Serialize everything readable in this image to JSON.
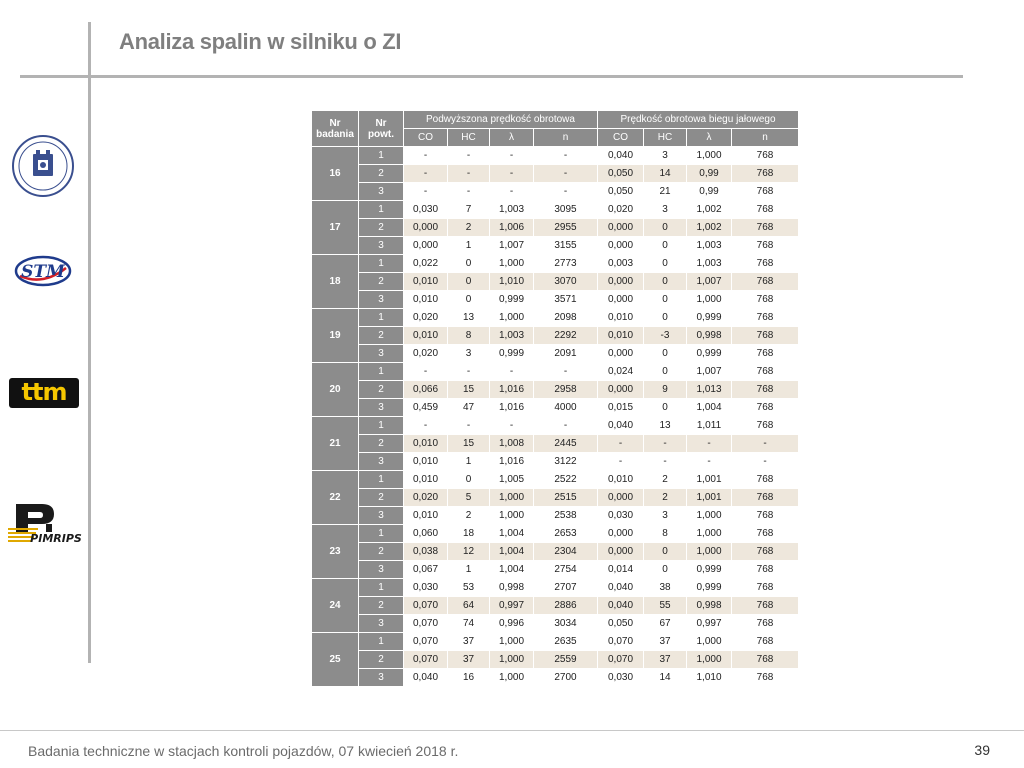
{
  "title": "Analiza spalin w silniku o ZI",
  "footer": "Badania techniczne w stacjach kontroli pojazdów, 07 kwiecień 2018 r.",
  "page_number": "39",
  "logos": {
    "ttm_text": "ttm",
    "stm_text": "STM",
    "pimrips_text": "PIMRIPS"
  },
  "table": {
    "col_nr_badania": [
      "Nr",
      "badania"
    ],
    "col_nr_powt": [
      "Nr",
      "powt."
    ],
    "group1": "Podwyższona prędkość obrotowa",
    "group2": "Prędkość obrotowa biegu jałowego",
    "subcols": [
      "CO",
      "HC",
      "λ",
      "n",
      "CO",
      "HC",
      "λ",
      "n"
    ],
    "tests": [
      {
        "nr": "16",
        "rows": [
          [
            "1",
            "-",
            "-",
            "-",
            "-",
            "0,040",
            "3",
            "1,000",
            "768"
          ],
          [
            "2",
            "-",
            "-",
            "-",
            "-",
            "0,050",
            "14",
            "0,99",
            "768"
          ],
          [
            "3",
            "-",
            "-",
            "-",
            "-",
            "0,050",
            "21",
            "0,99",
            "768"
          ]
        ]
      },
      {
        "nr": "17",
        "rows": [
          [
            "1",
            "0,030",
            "7",
            "1,003",
            "3095",
            "0,020",
            "3",
            "1,002",
            "768"
          ],
          [
            "2",
            "0,000",
            "2",
            "1,006",
            "2955",
            "0,000",
            "0",
            "1,002",
            "768"
          ],
          [
            "3",
            "0,000",
            "1",
            "1,007",
            "3155",
            "0,000",
            "0",
            "1,003",
            "768"
          ]
        ]
      },
      {
        "nr": "18",
        "rows": [
          [
            "1",
            "0,022",
            "0",
            "1,000",
            "2773",
            "0,003",
            "0",
            "1,003",
            "768"
          ],
          [
            "2",
            "0,010",
            "0",
            "1,010",
            "3070",
            "0,000",
            "0",
            "1,007",
            "768"
          ],
          [
            "3",
            "0,010",
            "0",
            "0,999",
            "3571",
            "0,000",
            "0",
            "1,000",
            "768"
          ]
        ]
      },
      {
        "nr": "19",
        "rows": [
          [
            "1",
            "0,020",
            "13",
            "1,000",
            "2098",
            "0,010",
            "0",
            "0,999",
            "768"
          ],
          [
            "2",
            "0,010",
            "8",
            "1,003",
            "2292",
            "0,010",
            "-3",
            "0,998",
            "768"
          ],
          [
            "3",
            "0,020",
            "3",
            "0,999",
            "2091",
            "0,000",
            "0",
            "0,999",
            "768"
          ]
        ]
      },
      {
        "nr": "20",
        "rows": [
          [
            "1",
            "-",
            "-",
            "-",
            "-",
            "0,024",
            "0",
            "1,007",
            "768"
          ],
          [
            "2",
            "0,066",
            "15",
            "1,016",
            "2958",
            "0,000",
            "9",
            "1,013",
            "768"
          ],
          [
            "3",
            "0,459",
            "47",
            "1,016",
            "4000",
            "0,015",
            "0",
            "1,004",
            "768"
          ]
        ]
      },
      {
        "nr": "21",
        "rows": [
          [
            "1",
            "-",
            "-",
            "-",
            "-",
            "0,040",
            "13",
            "1,011",
            "768"
          ],
          [
            "2",
            "0,010",
            "15",
            "1,008",
            "2445",
            "-",
            "-",
            "-",
            "-"
          ],
          [
            "3",
            "0,010",
            "1",
            "1,016",
            "3122",
            "-",
            "-",
            "-",
            "-"
          ]
        ]
      },
      {
        "nr": "22",
        "rows": [
          [
            "1",
            "0,010",
            "0",
            "1,005",
            "2522",
            "0,010",
            "2",
            "1,001",
            "768"
          ],
          [
            "2",
            "0,020",
            "5",
            "1,000",
            "2515",
            "0,000",
            "2",
            "1,001",
            "768"
          ],
          [
            "3",
            "0,010",
            "2",
            "1,000",
            "2538",
            "0,030",
            "3",
            "1,000",
            "768"
          ]
        ]
      },
      {
        "nr": "23",
        "rows": [
          [
            "1",
            "0,060",
            "18",
            "1,004",
            "2653",
            "0,000",
            "8",
            "1,000",
            "768"
          ],
          [
            "2",
            "0,038",
            "12",
            "1,004",
            "2304",
            "0,000",
            "0",
            "1,000",
            "768"
          ],
          [
            "3",
            "0,067",
            "1",
            "1,004",
            "2754",
            "0,014",
            "0",
            "0,999",
            "768"
          ]
        ]
      },
      {
        "nr": "24",
        "rows": [
          [
            "1",
            "0,030",
            "53",
            "0,998",
            "2707",
            "0,040",
            "38",
            "0,999",
            "768"
          ],
          [
            "2",
            "0,070",
            "64",
            "0,997",
            "2886",
            "0,040",
            "55",
            "0,998",
            "768"
          ],
          [
            "3",
            "0,070",
            "74",
            "0,996",
            "3034",
            "0,050",
            "67",
            "0,997",
            "768"
          ]
        ]
      },
      {
        "nr": "25",
        "rows": [
          [
            "1",
            "0,070",
            "37",
            "1,000",
            "2635",
            "0,070",
            "37",
            "1,000",
            "768"
          ],
          [
            "2",
            "0,070",
            "37",
            "1,000",
            "2559",
            "0,070",
            "37",
            "1,000",
            "768"
          ],
          [
            "3",
            "0,040",
            "16",
            "1,000",
            "2700",
            "0,030",
            "14",
            "1,010",
            "768"
          ]
        ]
      }
    ]
  }
}
